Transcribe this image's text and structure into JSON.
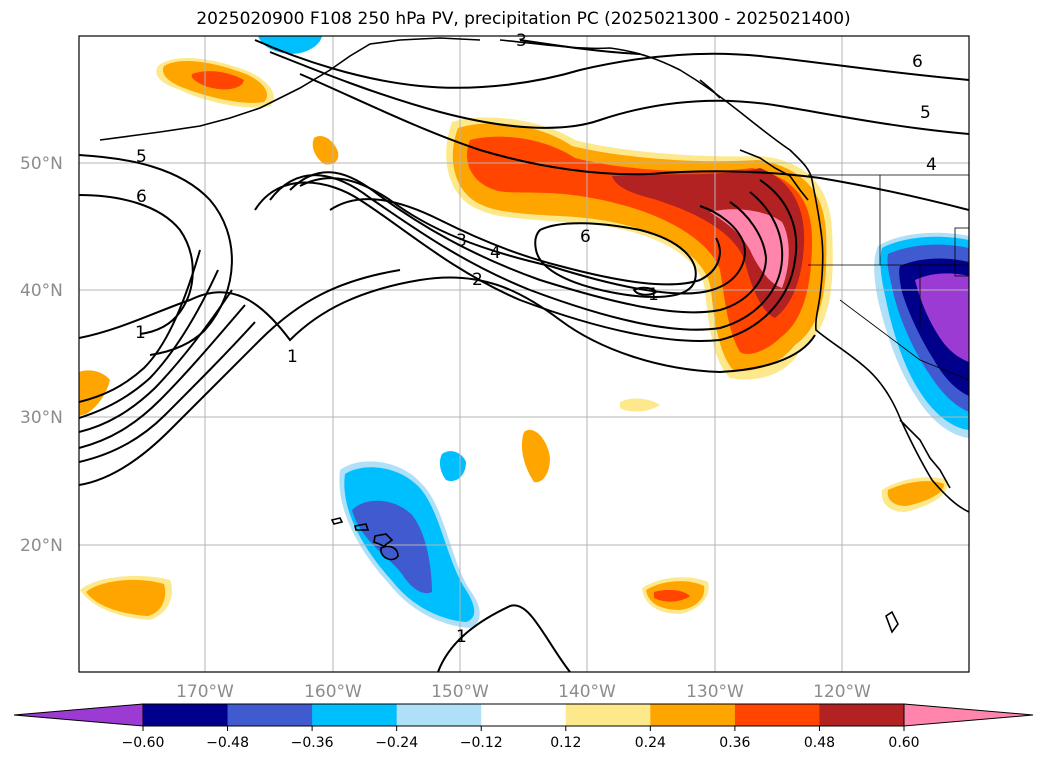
{
  "title": "2025020900 F108 250 hPa PV, precipitation PC (2025021300 - 2025021400)",
  "map": {
    "lat_labels": [
      "50°N",
      "40°N",
      "30°N",
      "20°N"
    ],
    "lon_labels": [
      "170°W",
      "160°W",
      "150°W",
      "140°W",
      "130°W",
      "120°W"
    ],
    "pv_contour_labels": [
      "5",
      "6",
      "3",
      "4",
      "2",
      "1",
      "6",
      "1",
      "6",
      "5",
      "4",
      "3",
      "1",
      "1"
    ]
  },
  "colorbar": {
    "colors": [
      "#9b3bd4",
      "#00008b",
      "#3f5bcf",
      "#00bfff",
      "#b0e0f7",
      "#ffffff",
      "#fde98c",
      "#ffa500",
      "#ff4500",
      "#b22222",
      "#ff85ad"
    ],
    "tick_labels": [
      "-0.60",
      "-0.48",
      "-0.36",
      "-0.24",
      "-0.12",
      "0.12",
      "0.24",
      "0.36",
      "0.48",
      "0.60"
    ]
  },
  "legend_values": {
    "levels": [
      -0.6,
      -0.48,
      -0.36,
      -0.24,
      -0.12,
      0.12,
      0.24,
      0.36,
      0.48,
      0.6
    ]
  }
}
